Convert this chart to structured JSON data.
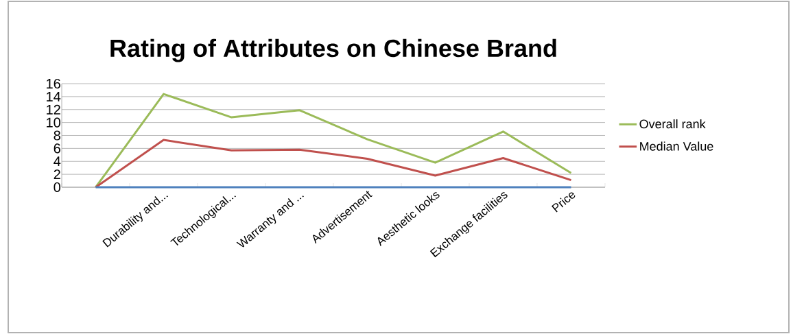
{
  "chart_data": {
    "type": "line",
    "title": "Rating of Attributes on Chinese Brand",
    "categories": [
      null,
      "Durability and...",
      "Technological...",
      "Warranty and ...",
      "Advertisement",
      "Aesthetic looks",
      "Exchange facilities",
      "Price"
    ],
    "series": [
      {
        "name": "Overall rank",
        "color": "#9bbb59",
        "values": [
          0,
          14.4,
          10.8,
          11.9,
          7.4,
          3.8,
          8.6,
          2.2
        ]
      },
      {
        "name": "Median Value",
        "color": "#c0504d",
        "values": [
          0,
          7.3,
          5.7,
          5.8,
          4.4,
          1.8,
          4.5,
          1.1
        ]
      },
      {
        "color": "#4f81bd",
        "values": [
          0,
          0,
          0,
          0,
          0,
          0,
          0,
          0
        ]
      }
    ],
    "ylim": [
      0,
      16
    ],
    "yticks": [
      0,
      2,
      4,
      6,
      8,
      10,
      12,
      14,
      16
    ],
    "grid": "y",
    "legend": "right",
    "marker": "none",
    "line_style": "solid"
  }
}
